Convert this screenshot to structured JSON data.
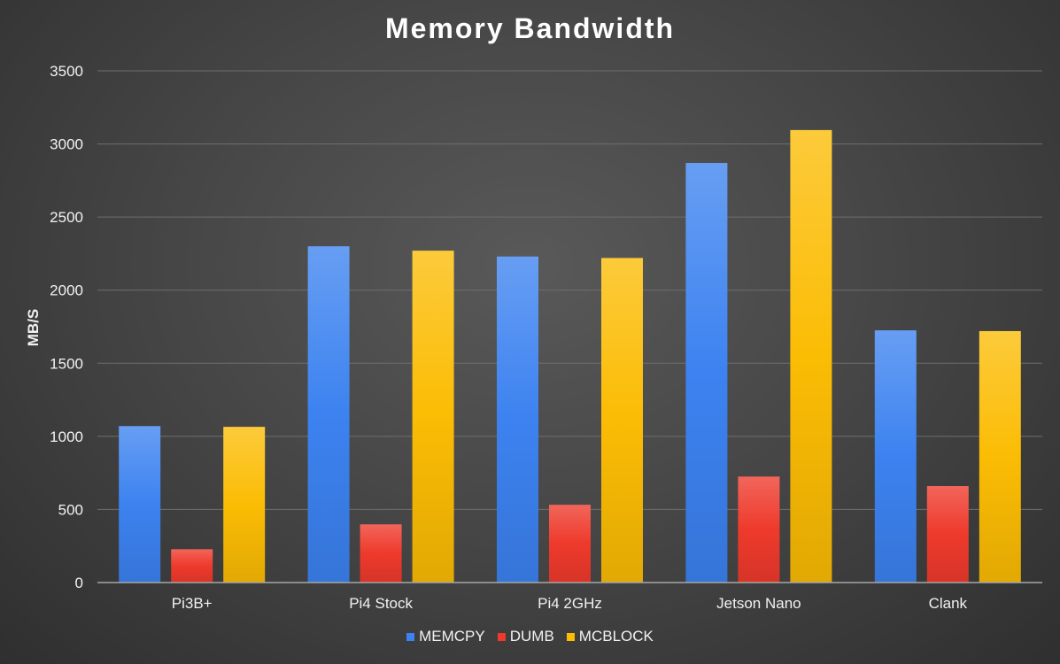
{
  "chart_data": {
    "type": "bar",
    "title": "Memory Bandwidth",
    "xlabel": "",
    "ylabel": "MB/S",
    "ylim": [
      0,
      3500
    ],
    "yticks": [
      "0",
      "500",
      "1000",
      "1500",
      "2000",
      "2500",
      "3000",
      "3500"
    ],
    "grid": true,
    "legend_position": "bottom",
    "categories": [
      "Pi3B+",
      "Pi4 Stock",
      "Pi4 2GHz",
      "Jetson Nano",
      "Clank"
    ],
    "series": [
      {
        "name": "MEMCPY",
        "color": "#3c82f0",
        "values": [
          1070,
          2300,
          2230,
          2870,
          1725
        ]
      },
      {
        "name": "DUMB",
        "color": "#ee3a2c",
        "values": [
          228,
          398,
          532,
          725,
          660
        ]
      },
      {
        "name": "MCBLOCK",
        "color": "#fbbc04",
        "values": [
          1065,
          2270,
          2220,
          3095,
          1720
        ]
      }
    ]
  }
}
